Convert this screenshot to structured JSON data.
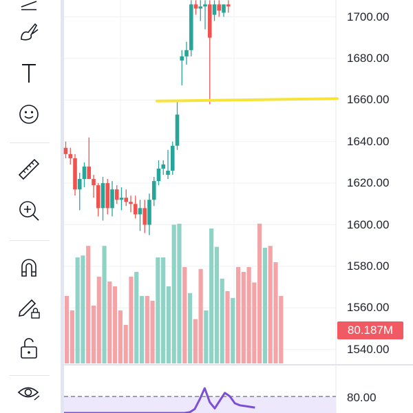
{
  "toolbar": {
    "tools": [
      {
        "name": "brush-icon"
      },
      {
        "name": "text-tool-icon"
      },
      {
        "name": "emoji-icon"
      },
      {
        "name": "ruler-icon"
      },
      {
        "name": "zoom-in-icon"
      },
      {
        "name": "magnet-icon"
      },
      {
        "name": "lock-drawing-icon"
      },
      {
        "name": "unlock-icon"
      },
      {
        "name": "eye-icon"
      }
    ]
  },
  "price_axis": {
    "labels": [
      "1700.00",
      "1680.00",
      "1660.00",
      "1640.00",
      "1620.00",
      "1600.00",
      "1580.00",
      "1560.00",
      "1540.00"
    ]
  },
  "volume_badge": "80.187M",
  "oscillator": {
    "level_label": "80.00"
  },
  "colors": {
    "up": "#26a69a",
    "down": "#ef5350",
    "volume_up": "#8fd3c6",
    "volume_down": "#f4a4a7",
    "horizontal_line": "#f7e43a",
    "oscillator": "#7b4fd6"
  },
  "chart_data": {
    "type": "candlestick",
    "ylim": [
      1537,
      1708
    ],
    "price_ticks": [
      1700,
      1680,
      1660,
      1640,
      1620,
      1600,
      1580,
      1560,
      1540
    ],
    "horizontal_line": 1660,
    "candles": [
      {
        "o": 1637,
        "h": 1640,
        "l": 1632,
        "c": 1634
      },
      {
        "o": 1634,
        "h": 1637,
        "l": 1629,
        "c": 1632
      },
      {
        "o": 1632,
        "h": 1634,
        "l": 1614,
        "c": 1617
      },
      {
        "o": 1617,
        "h": 1625,
        "l": 1607,
        "c": 1622
      },
      {
        "o": 1622,
        "h": 1630,
        "l": 1618,
        "c": 1628
      },
      {
        "o": 1628,
        "h": 1642,
        "l": 1622,
        "c": 1622
      },
      {
        "o": 1622,
        "h": 1624,
        "l": 1613,
        "c": 1619
      },
      {
        "o": 1619,
        "h": 1620,
        "l": 1604,
        "c": 1608
      },
      {
        "o": 1608,
        "h": 1623,
        "l": 1602,
        "c": 1620
      },
      {
        "o": 1620,
        "h": 1622,
        "l": 1605,
        "c": 1608
      },
      {
        "o": 1608,
        "h": 1621,
        "l": 1604,
        "c": 1617
      },
      {
        "o": 1617,
        "h": 1619,
        "l": 1610,
        "c": 1612
      },
      {
        "o": 1612,
        "h": 1618,
        "l": 1607,
        "c": 1613
      },
      {
        "o": 1613,
        "h": 1617,
        "l": 1609,
        "c": 1611
      },
      {
        "o": 1611,
        "h": 1614,
        "l": 1606,
        "c": 1610
      },
      {
        "o": 1610,
        "h": 1614,
        "l": 1603,
        "c": 1605
      },
      {
        "o": 1605,
        "h": 1612,
        "l": 1597,
        "c": 1608
      },
      {
        "o": 1608,
        "h": 1612,
        "l": 1596,
        "c": 1600
      },
      {
        "o": 1600,
        "h": 1615,
        "l": 1595,
        "c": 1612
      },
      {
        "o": 1612,
        "h": 1623,
        "l": 1609,
        "c": 1621
      },
      {
        "o": 1621,
        "h": 1631,
        "l": 1619,
        "c": 1627
      },
      {
        "o": 1627,
        "h": 1631,
        "l": 1624,
        "c": 1629
      },
      {
        "o": 1624,
        "h": 1636,
        "l": 1622,
        "c": 1626
      },
      {
        "o": 1626,
        "h": 1640,
        "l": 1624,
        "c": 1638
      },
      {
        "o": 1638,
        "h": 1660,
        "l": 1636,
        "c": 1653
      },
      {
        "o": 1679,
        "h": 1684,
        "l": 1667,
        "c": 1681
      },
      {
        "o": 1681,
        "h": 1688,
        "l": 1677,
        "c": 1684
      },
      {
        "o": 1684,
        "h": 1708,
        "l": 1681,
        "c": 1706
      },
      {
        "o": 1706,
        "h": 1708,
        "l": 1701,
        "c": 1704
      },
      {
        "o": 1704,
        "h": 1708,
        "l": 1698,
        "c": 1705
      },
      {
        "o": 1705,
        "h": 1708,
        "l": 1694,
        "c": 1706
      },
      {
        "o": 1706,
        "h": 1708,
        "l": 1658,
        "c": 1690
      },
      {
        "o": 1701,
        "h": 1708,
        "l": 1698,
        "c": 1706
      },
      {
        "o": 1706,
        "h": 1708,
        "l": 1700,
        "c": 1703
      },
      {
        "o": 1702,
        "h": 1706,
        "l": 1700,
        "c": 1706
      },
      {
        "o": 1706,
        "h": 1708,
        "l": 1702,
        "c": 1705
      }
    ],
    "volume_bars": [
      {
        "v": 0.7,
        "up": false
      },
      {
        "v": 0.55,
        "up": false
      },
      {
        "v": 1.1,
        "up": true
      },
      {
        "v": 1.12,
        "up": true
      },
      {
        "v": 1.22,
        "up": false
      },
      {
        "v": 0.6,
        "up": false
      },
      {
        "v": 0.9,
        "up": false
      },
      {
        "v": 1.22,
        "up": true
      },
      {
        "v": 0.85,
        "up": false
      },
      {
        "v": 0.8,
        "up": false
      },
      {
        "v": 0.55,
        "up": false
      },
      {
        "v": 0.4,
        "up": false
      },
      {
        "v": 0.9,
        "up": false
      },
      {
        "v": 0.95,
        "up": true
      },
      {
        "v": 0.7,
        "up": true
      },
      {
        "v": 0.7,
        "up": false
      },
      {
        "v": 0.65,
        "up": false
      },
      {
        "v": 1.1,
        "up": true
      },
      {
        "v": 1.1,
        "up": true
      },
      {
        "v": 0.8,
        "up": true
      },
      {
        "v": 1.44,
        "up": true
      },
      {
        "v": 1.45,
        "up": true
      },
      {
        "v": 1.0,
        "up": false
      },
      {
        "v": 0.73,
        "up": true
      },
      {
        "v": 0.46,
        "up": false
      },
      {
        "v": 0.98,
        "up": false
      },
      {
        "v": 0.55,
        "up": true
      },
      {
        "v": 1.4,
        "up": true
      },
      {
        "v": 1.21,
        "up": true
      },
      {
        "v": 0.88,
        "up": true
      },
      {
        "v": 0.75,
        "up": false
      },
      {
        "v": 0.68,
        "up": true
      },
      {
        "v": 1.0,
        "up": false
      },
      {
        "v": 0.95,
        "up": false
      },
      {
        "v": 1.0,
        "up": false
      },
      {
        "v": 0.84,
        "up": false
      },
      {
        "v": 1.45,
        "up": false
      },
      {
        "v": 1.2,
        "up": true
      },
      {
        "v": 1.22,
        "up": false
      },
      {
        "v": 1.05,
        "up": false
      },
      {
        "v": 0.7,
        "up": false
      }
    ],
    "oscillator_values": [
      20,
      20,
      20,
      20,
      20,
      20,
      20,
      20,
      20,
      20,
      20,
      20,
      20,
      20,
      20,
      20,
      20,
      20,
      20,
      20,
      20,
      20,
      20,
      20,
      20,
      22,
      30,
      55,
      84,
      48,
      32,
      52,
      72,
      63,
      45,
      40,
      38,
      36,
      34
    ]
  }
}
